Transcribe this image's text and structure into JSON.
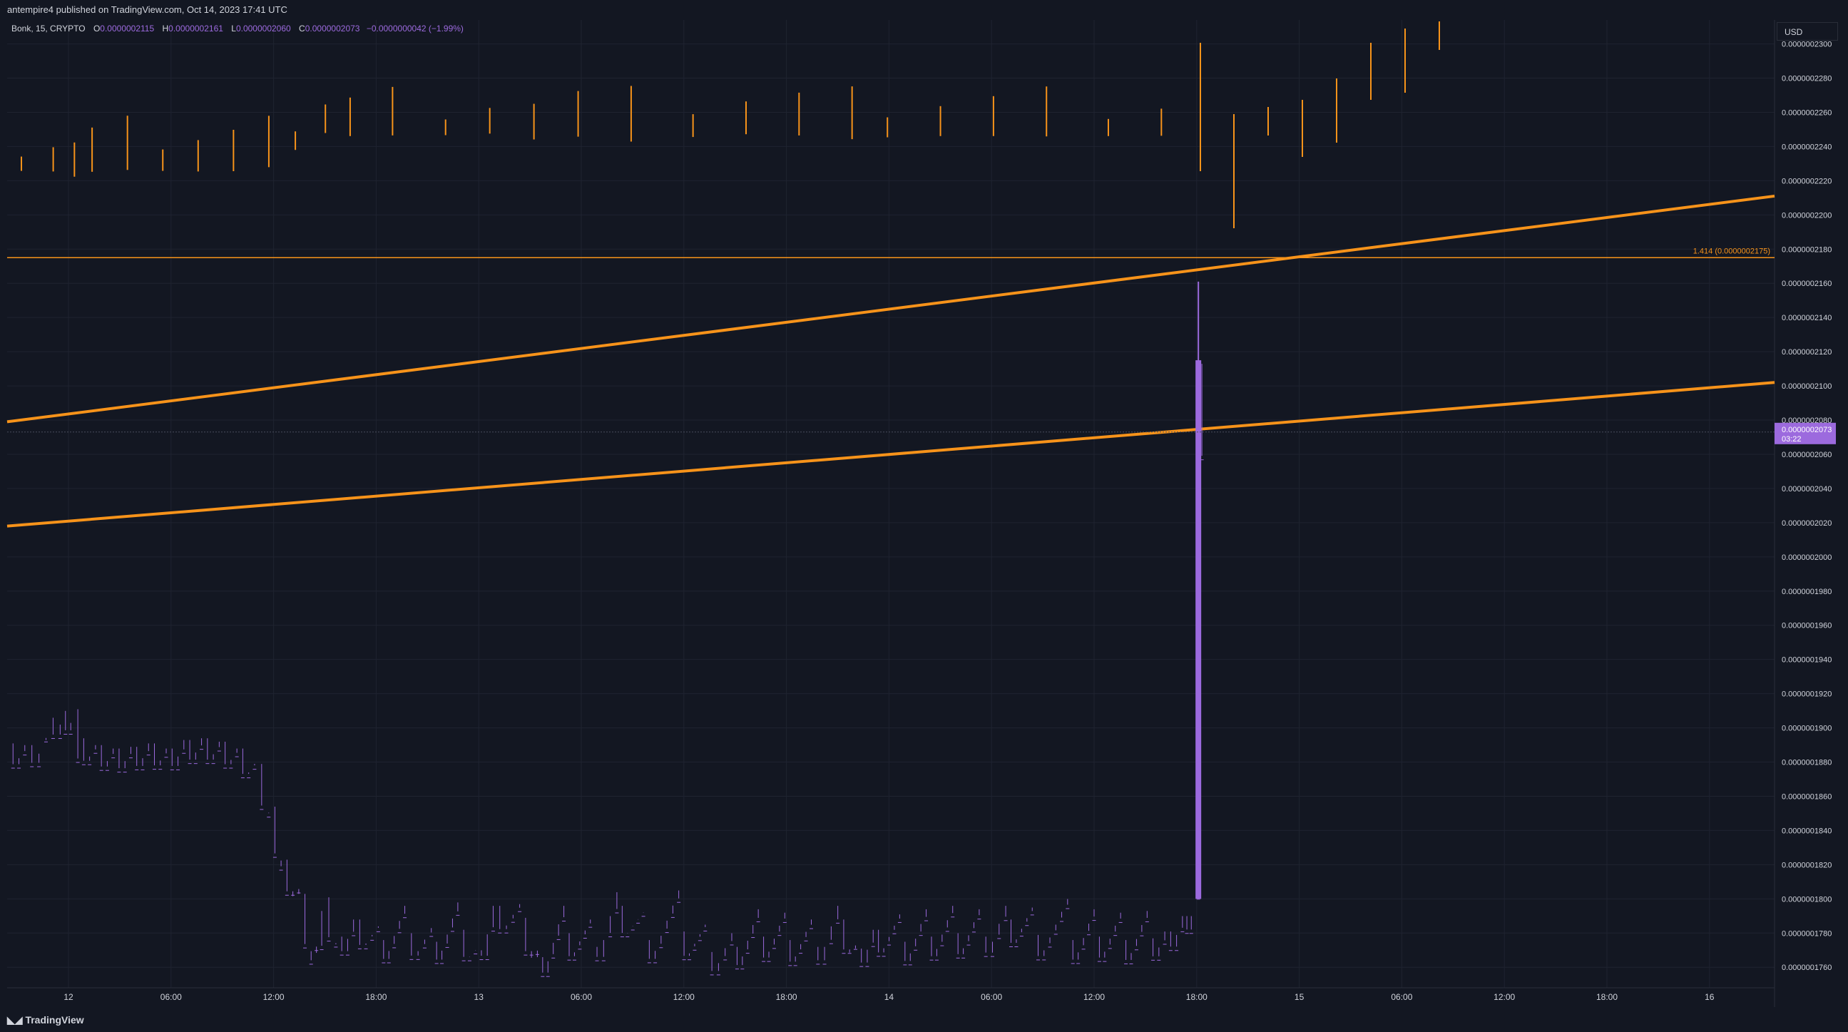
{
  "header": {
    "attribution": "antempire4 published on TradingView.com, Oct 14, 2023 17:41 UTC"
  },
  "legend": {
    "symbol": "Bonk, 15, CRYPTO",
    "o_label": "O",
    "o_value": "0.0000002115",
    "h_label": "H",
    "h_value": "0.0000002161",
    "l_label": "L",
    "l_value": "0.0000002060",
    "c_label": "C",
    "c_value": "0.0000002073",
    "change": "−0.0000000042 (−1.99%)"
  },
  "currency": "USD",
  "footer": {
    "brand": "TradingView"
  },
  "colors": {
    "background": "#131722",
    "candle": "#9c6ade",
    "drawing": "#f7931a",
    "grid": "#1f2330",
    "axis_text": "#d1d4dc"
  },
  "chart_data": {
    "type": "candlestick",
    "ylim": [
      1.748e-07,
      2.314e-07
    ],
    "y_ticks": [
      "0.0000002300",
      "0.0000002280",
      "0.0000002260",
      "0.0000002240",
      "0.0000002220",
      "0.0000002200",
      "0.0000002180",
      "0.0000002160",
      "0.0000002140",
      "0.0000002120",
      "0.0000002100",
      "0.0000002080",
      "0.0000002060",
      "0.0000002040",
      "0.0000002020",
      "0.0000002000",
      "0.0000001980",
      "0.0000001960",
      "0.0000001940",
      "0.0000001920",
      "0.0000001900",
      "0.0000001880",
      "0.0000001860",
      "0.0000001840",
      "0.0000001820",
      "0.0000001800",
      "0.0000001780",
      "0.0000001760"
    ],
    "x_ticks": [
      "12",
      "06:00",
      "12:00",
      "18:00",
      "13",
      "06:00",
      "12:00",
      "18:00",
      "14",
      "06:00",
      "12:00",
      "18:00",
      "15",
      "06:00",
      "12:00",
      "18:00",
      "16"
    ],
    "last_price_label": "0.0000002073",
    "countdown_label": "03:22",
    "fib_level_label": "1.414 (0.0000002175)",
    "fib_level_value": 2.175e-07,
    "trend_lines": [
      {
        "from": [
          0.0,
          2.079e-07
        ],
        "to": [
          1.0,
          2.211e-07
        ]
      },
      {
        "from": [
          0.0,
          2.018e-07
        ],
        "to": [
          1.0,
          2.102e-07
        ]
      }
    ],
    "price_path": [
      [
        0.0,
        1.893e-07
      ],
      [
        0.01,
        1.892e-07
      ],
      [
        0.018,
        1.895e-07
      ],
      [
        0.022,
        1.908e-07
      ],
      [
        0.03,
        1.912e-07
      ],
      [
        0.036,
        1.913e-07
      ],
      [
        0.04,
        1.896e-07
      ],
      [
        0.05,
        1.892e-07
      ],
      [
        0.06,
        1.89e-07
      ],
      [
        0.07,
        1.891e-07
      ],
      [
        0.08,
        1.893e-07
      ],
      [
        0.09,
        1.89e-07
      ],
      [
        0.1,
        1.895e-07
      ],
      [
        0.11,
        1.896e-07
      ],
      [
        0.12,
        1.894e-07
      ],
      [
        0.13,
        1.89e-07
      ],
      [
        0.14,
        1.881e-07
      ],
      [
        0.148,
        1.856e-07
      ],
      [
        0.155,
        1.825e-07
      ],
      [
        0.165,
        1.805e-07
      ],
      [
        0.172,
        1.77e-07
      ],
      [
        0.178,
        1.803e-07
      ],
      [
        0.186,
        1.78e-07
      ],
      [
        0.196,
        1.79e-07
      ],
      [
        0.21,
        1.778e-07
      ],
      [
        0.225,
        1.782e-07
      ],
      [
        0.24,
        1.777e-07
      ],
      [
        0.255,
        1.784e-07
      ],
      [
        0.265,
        1.772e-07
      ],
      [
        0.275,
        1.798e-07
      ],
      [
        0.29,
        1.791e-07
      ],
      [
        0.3,
        1.768e-07
      ],
      [
        0.315,
        1.782e-07
      ],
      [
        0.33,
        1.774e-07
      ],
      [
        0.345,
        1.798e-07
      ],
      [
        0.36,
        1.778e-07
      ],
      [
        0.38,
        1.783e-07
      ],
      [
        0.395,
        1.771e-07
      ],
      [
        0.41,
        1.774e-07
      ],
      [
        0.425,
        1.78e-07
      ],
      [
        0.44,
        1.778e-07
      ],
      [
        0.455,
        1.774e-07
      ],
      [
        0.47,
        1.79e-07
      ],
      [
        0.48,
        1.773e-07
      ],
      [
        0.49,
        1.784e-07
      ],
      [
        0.505,
        1.777e-07
      ],
      [
        0.52,
        1.78e-07
      ],
      [
        0.535,
        1.782e-07
      ],
      [
        0.55,
        1.78e-07
      ],
      [
        0.565,
        1.79e-07
      ],
      [
        0.58,
        1.781e-07
      ],
      [
        0.6,
        1.778e-07
      ],
      [
        0.615,
        1.78e-07
      ],
      [
        0.63,
        1.778e-07
      ],
      [
        0.645,
        1.779e-07
      ],
      [
        0.655,
        1.783e-07
      ],
      [
        0.665,
        1.792e-07
      ],
      [
        0.67,
        1.8e-07
      ],
      [
        0.674,
        2.115e-07
      ],
      [
        0.676,
        2.073e-07
      ]
    ]
  }
}
